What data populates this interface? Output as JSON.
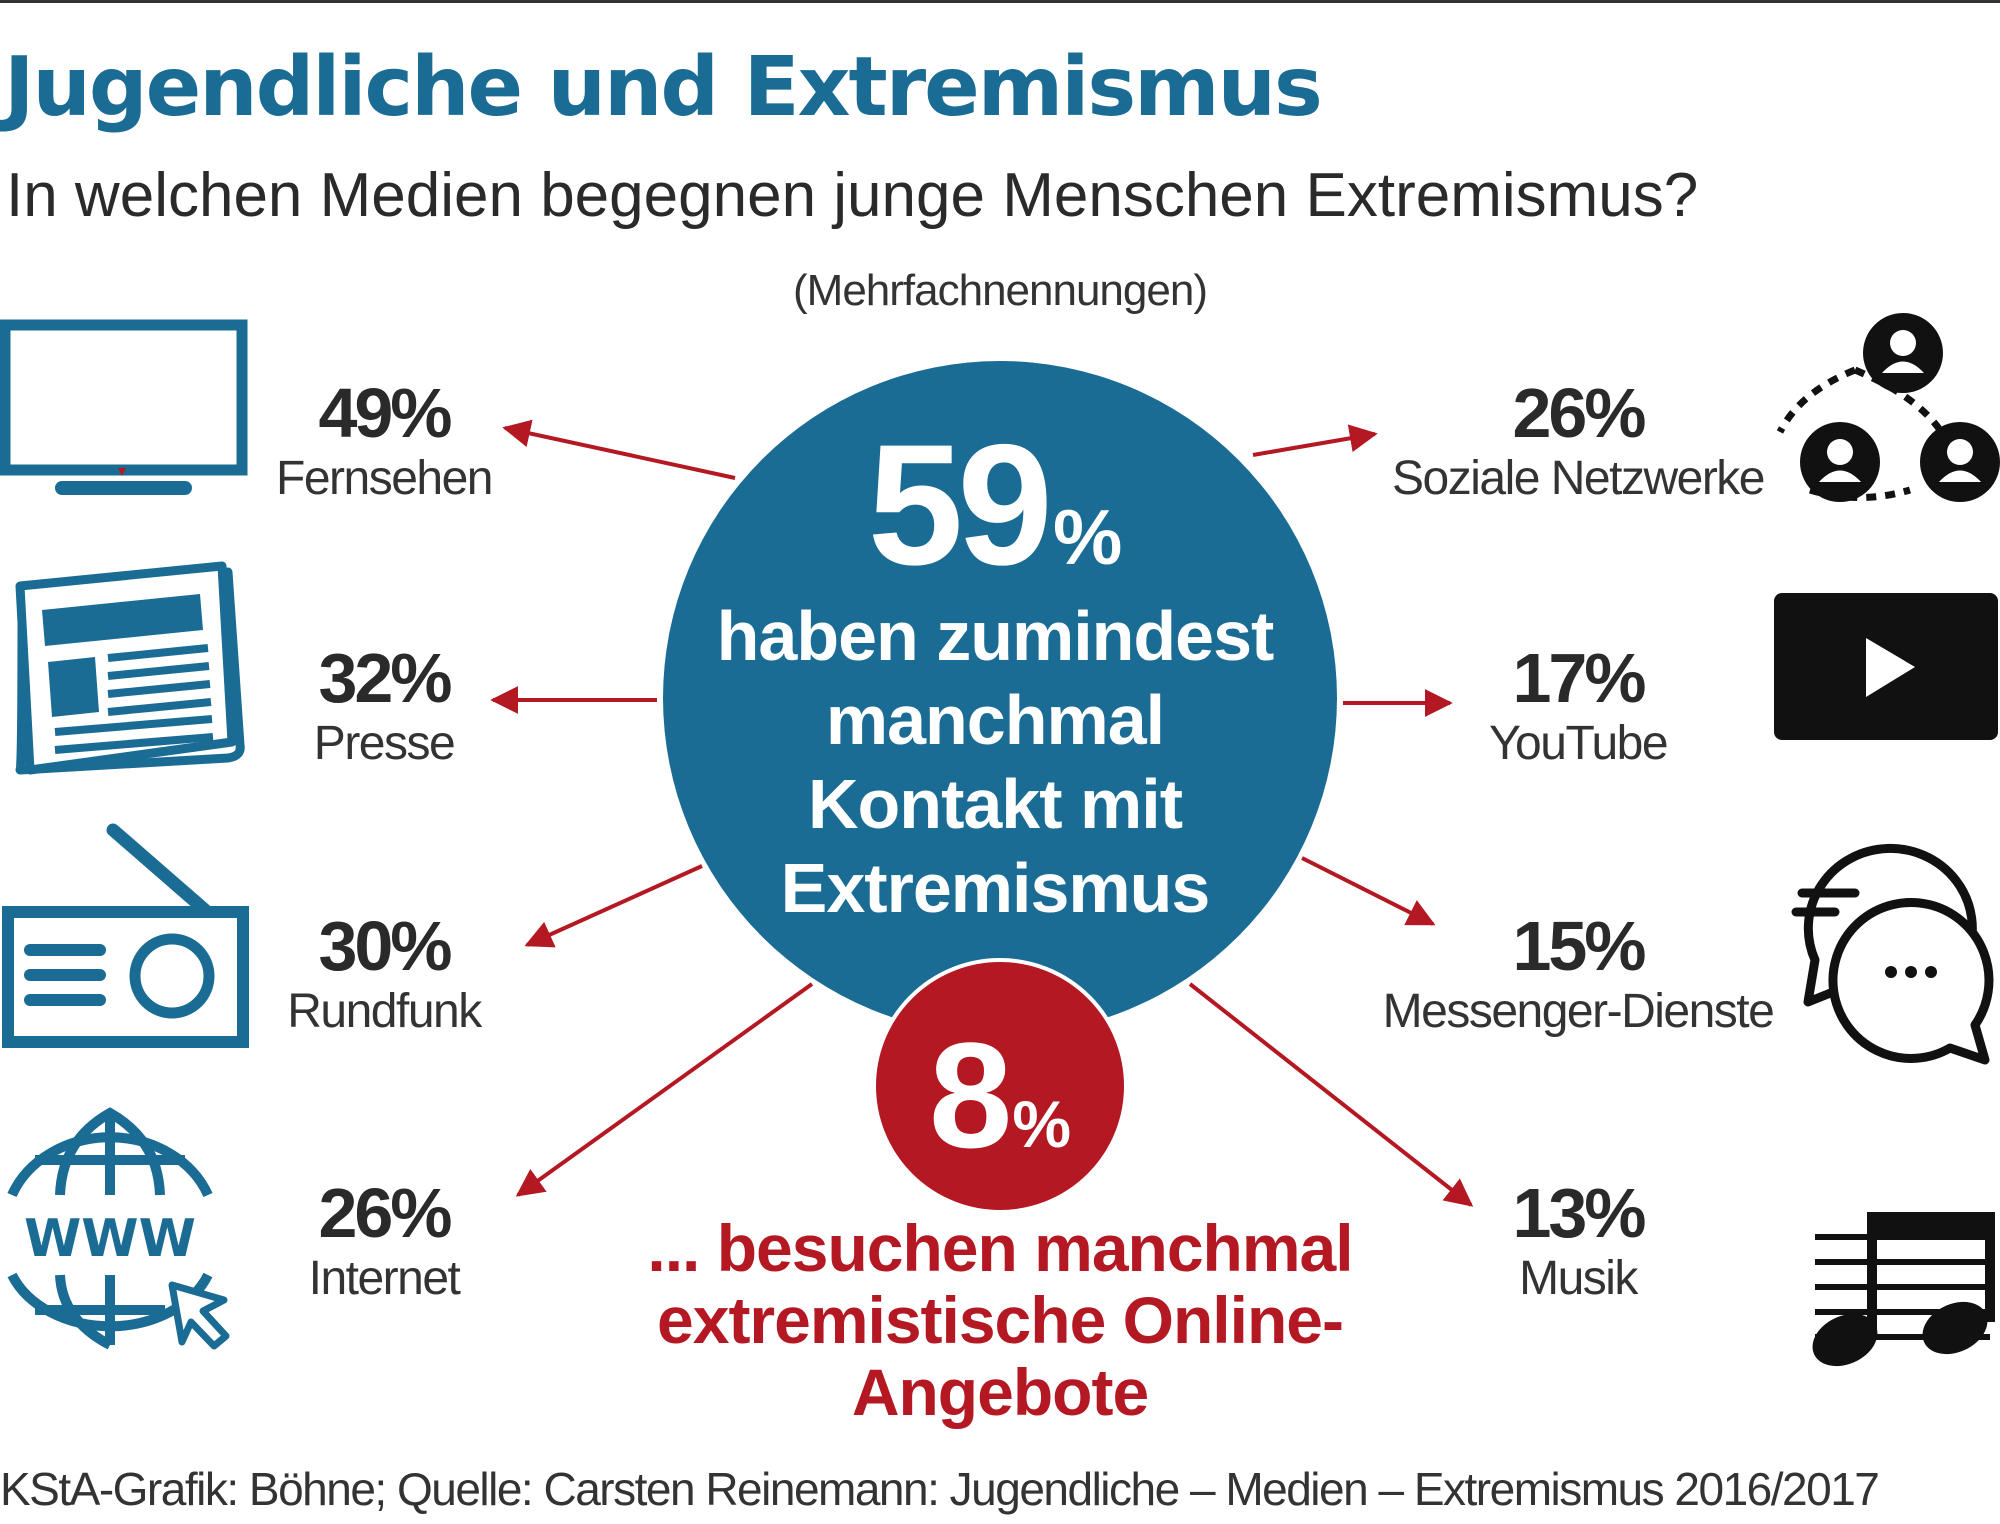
{
  "header": {
    "title": "Jugendliche und Extremismus",
    "subtitle": "In welchen Medien begegnen junge Menschen Extremismus?",
    "note": "(Mehrfachnennungen)"
  },
  "center": {
    "value": "59",
    "unit": "%",
    "text": "haben zumindest manchmal Kontakt mit Extremismus",
    "color": "#1b6c95"
  },
  "sub": {
    "value": "8",
    "unit": "%",
    "text": "... besuchen manchmal extremistische Online-Angebote",
    "color": "#b41822"
  },
  "chart_data": {
    "type": "bar",
    "title": "Jugendliche und Extremismus",
    "subtitle": "In welchen Medien begegnen junge Menschen Extremismus?",
    "unit": "%",
    "categories": [
      "Fernsehen",
      "Presse",
      "Rundfunk",
      "Internet",
      "Soziale Netzwerke",
      "YouTube",
      "Messenger-Dienste",
      "Musik"
    ],
    "values": [
      49,
      32,
      30,
      26,
      26,
      17,
      15,
      13
    ],
    "labels": [
      "49%",
      "32%",
      "30%",
      "26%",
      "26%",
      "17%",
      "15%",
      "13%"
    ],
    "icons": [
      "tv-icon",
      "newspaper-icon",
      "radio-icon",
      "globe-www-icon",
      "social-network-icon",
      "play-video-icon",
      "chat-bubbles-icon",
      "music-notes-icon"
    ],
    "totals": [
      {
        "value": 59,
        "text": "haben zumindest manchmal Kontakt mit Extremismus"
      },
      {
        "value": 8,
        "text": "... besuchen manchmal extremistische Online-Angebote"
      }
    ]
  },
  "colors": {
    "primary": "#1b6c95",
    "accent": "#b41822",
    "text": "#2a2a2a",
    "icon_dark": "#111111"
  },
  "footer": {
    "source": "KStA-Grafik: Böhne; Quelle: Carsten Reinemann: Jugendliche – Medien – Extremismus 2016/2017"
  }
}
